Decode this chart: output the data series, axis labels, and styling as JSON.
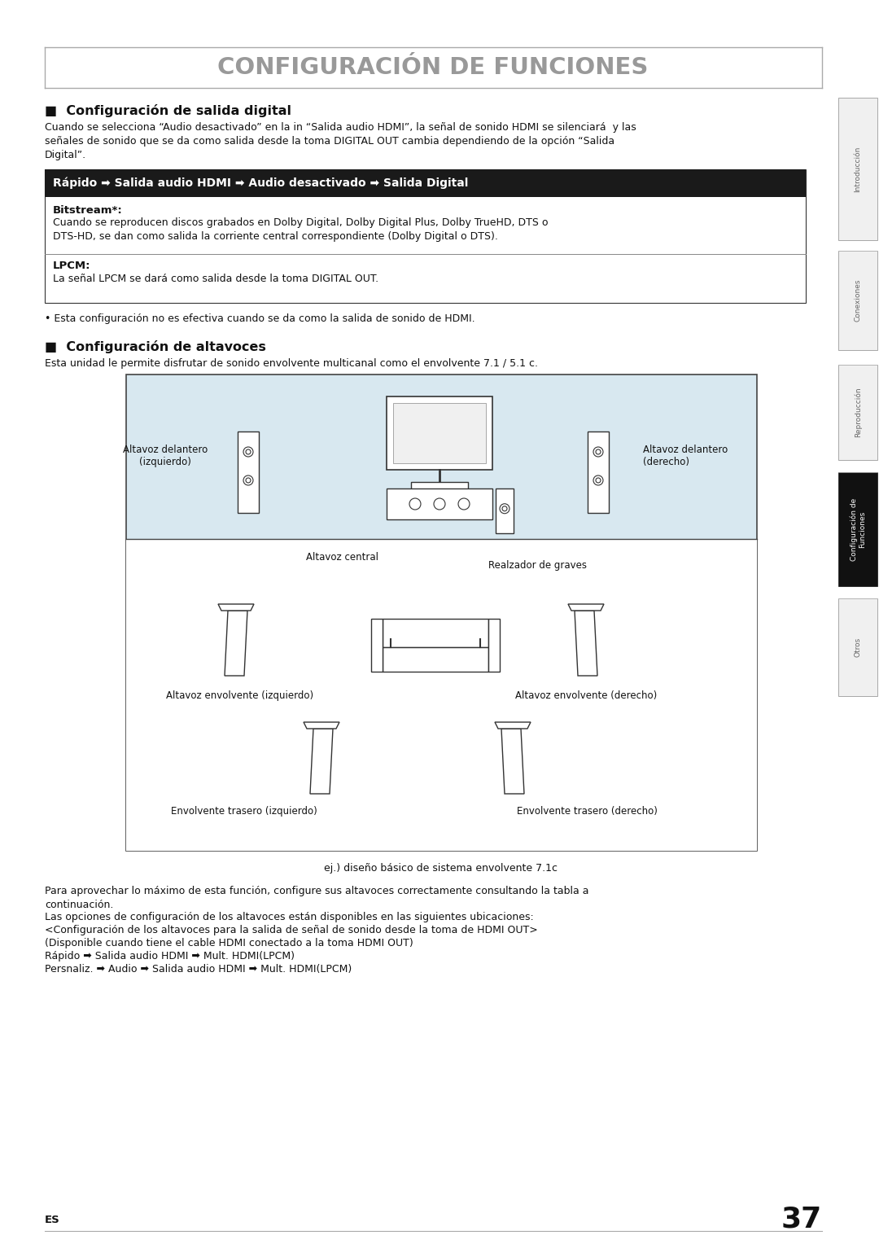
{
  "title": "CONFIGURACIÓN DE FUNCIONES",
  "section1_title": "■  Configuración de salida digital",
  "section1_body": "Cuando se selecciona “Audio desactivado” en la in “Salida audio HDMI”, la señal de sonido HDMI se silenciará  y las\nseñales de sonido que se da como salida desde la toma DIGITAL OUT cambia dependiendo de la opción “Salida\nDigital”.",
  "table_header": "Rápido ➡ Salida audio HDMI ➡ Audio desactivado ➡ Salida Digital",
  "bitstream_label": "Bitstream*:",
  "bitstream_body": "Cuando se reproducen discos grabados en Dolby Digital, Dolby Digital Plus, Dolby TrueHD, DTS o\nDTS-HD, se dan como salida la corriente central correspondiente (Dolby Digital o DTS).",
  "lpcm_label": "LPCM:",
  "lpcm_body": "La señal LPCM se dará como salida desde la toma DIGITAL OUT.",
  "note": "• Esta configuración no es efectiva cuando se da como la salida de sonido de HDMI.",
  "section2_title": "■  Configuración de altavoces",
  "section2_body": "Esta unidad le permite disfrutar de sonido envolvente multicanal como el envolvente 7.1 / 5.1 c.",
  "diagram_caption": "ej.) diseño básico de sistema envolvente 7.1c",
  "label_front_left": "Altavoz delantero\n(izquierdo)",
  "label_front_right": "Altavoz delantero\n(derecho)",
  "label_center": "Altavoz central",
  "label_subwoofer": "Realzador de graves",
  "label_surround_left": "Altavoz envolvente (izquierdo)",
  "label_surround_right": "Altavoz envolvente (derecho)",
  "label_rear_left": "Envolvente trasero (izquierdo)",
  "label_rear_right": "Envolvente trasero (derecho)",
  "footer_text1": "Para aprovechar lo máximo de esta función, configure sus altavoces correctamente consultando la tabla a\ncontinuación.",
  "footer_text2": "Las opciones de configuración de los altavoces están disponibles en las siguientes ubicaciones:",
  "footer_text3": "<Configuración de los altavoces para la salida de señal de sonido desde la toma de HDMI OUT>",
  "footer_text4": "(Disponible cuando tiene el cable HDMI conectado a la toma HDMI OUT)",
  "footer_text5": "Rápido ➡ Salida audio HDMI ➡ Mult. HDMI(LPCM)",
  "footer_text6": "Persnaliz. ➡ Audio ➡ Salida audio HDMI ➡ Mult. HDMI(LPCM)",
  "page_number": "37",
  "es_label": "ES",
  "bg_color": "#ffffff",
  "header_bg": "#1a1a1a",
  "header_text_color": "#ffffff",
  "table_border": "#333333",
  "section_title_color": "#111111",
  "body_text_color": "#111111",
  "diagram_bg": "#d8e8f0",
  "diagram_border": "#555555",
  "sidebar_active_bg": "#111111",
  "sidebar_active_text": "#ffffff",
  "sidebar_inactive_text": "#666666",
  "title_color": "#999999",
  "line_color": "#aaaaaa"
}
